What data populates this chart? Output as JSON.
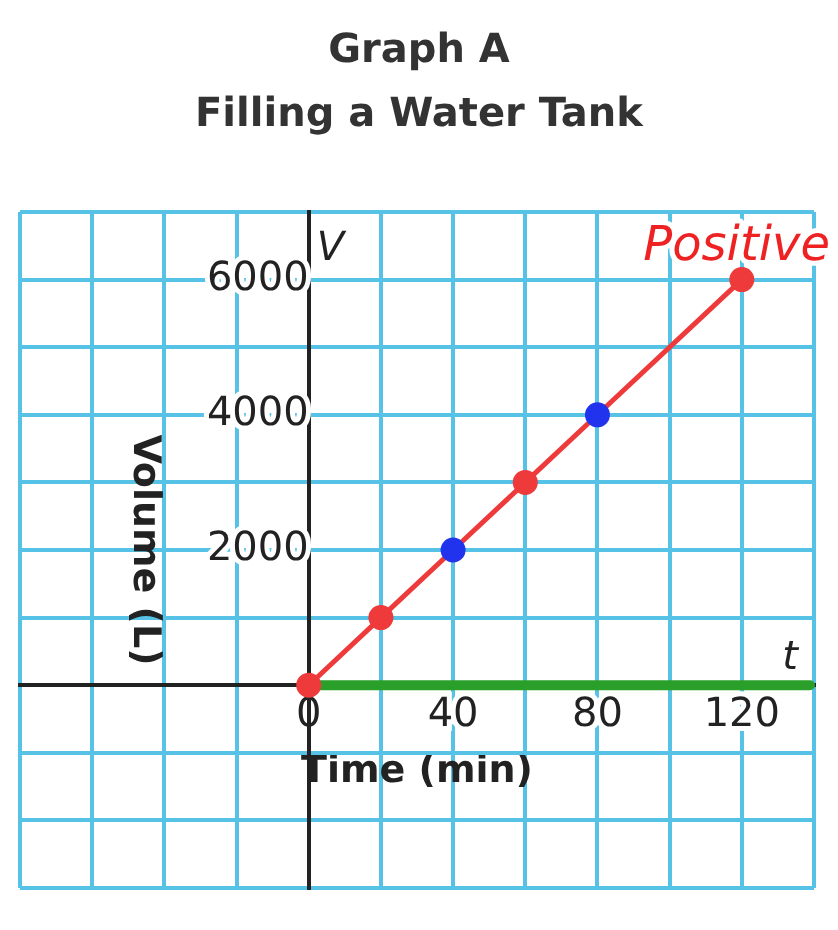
{
  "chart_data": {
    "type": "line",
    "title": "Graph A",
    "subtitle": "Filling a Water Tank",
    "xlabel": "Time (min)",
    "ylabel": "Volume (L)",
    "series": [
      {
        "color": "#ee3a3a",
        "colors": [
          "#ee3a3a",
          "#ee3a3a",
          "#2233ee",
          "#ee3a3a",
          "#2233ee",
          "#ee3a3a"
        ],
        "x": [
          0,
          20,
          40,
          60,
          80,
          120
        ],
        "values": [
          0,
          1000,
          2000,
          3000,
          4000,
          6000
        ]
      }
    ],
    "xlim": [
      -80,
      140
    ],
    "ylim": [
      -3000,
      7000
    ],
    "xticks": [
      {
        "value": -80,
        "label": null
      },
      {
        "value": -60,
        "label": null
      },
      {
        "value": -40,
        "label": null
      },
      {
        "value": -20,
        "label": null
      },
      0,
      {
        "value": 20,
        "label": null
      },
      40,
      {
        "value": 60,
        "label": null
      },
      80,
      {
        "value": 100,
        "label": null
      },
      120,
      {
        "value": 140,
        "label": null
      }
    ],
    "yticks": [
      {
        "value": -3000,
        "label": null
      },
      {
        "value": -2000,
        "label": null
      },
      {
        "value": -1000,
        "label": null
      },
      {
        "value": 0,
        "label": null
      },
      {
        "value": 1000,
        "label": null
      },
      2000,
      {
        "value": 3000,
        "label": null
      },
      4000,
      {
        "value": 5000,
        "label": null
      },
      6000,
      {
        "value": 7000,
        "label": null
      }
    ],
    "grid": true,
    "legend": false,
    "marker": "circle",
    "line_style": "solid",
    "ref_lines": [
      {
        "axis": "y",
        "value": 0,
        "color": "#2aa02a"
      }
    ],
    "annotations": [
      "Positive",
      "V",
      "t"
    ]
  }
}
